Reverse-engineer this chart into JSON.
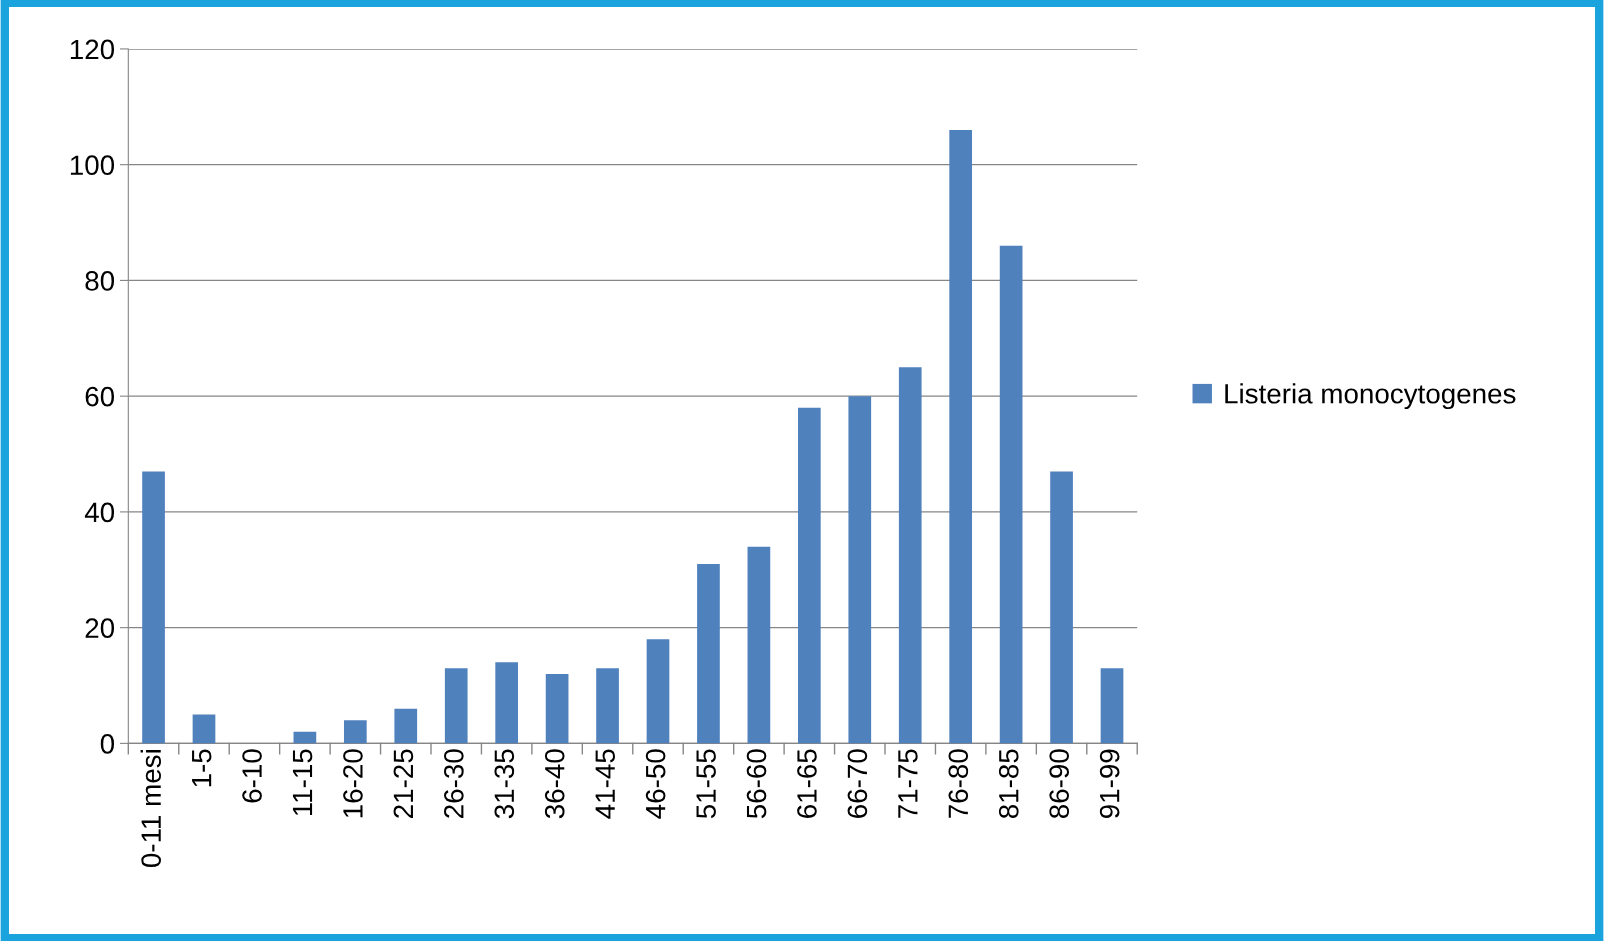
{
  "chart_data": {
    "type": "bar",
    "categories": [
      "0-11 mesi",
      "1-5",
      "6-10",
      "11-15",
      "16-20",
      "21-25",
      "26-30",
      "31-35",
      "36-40",
      "41-45",
      "46-50",
      "51-55",
      "56-60",
      "61-65",
      "66-70",
      "71-75",
      "76-80",
      "81-85",
      "86-90",
      "91-99"
    ],
    "series": [
      {
        "name": "Listeria monocytogenes",
        "color": "#4f81bd",
        "values": [
          47,
          5,
          0,
          2,
          4,
          6,
          13,
          14,
          12,
          13,
          18,
          31,
          34,
          58,
          60,
          65,
          106,
          86,
          47,
          13
        ]
      }
    ],
    "ylim": [
      0,
      120
    ],
    "yticks": [
      0,
      20,
      40,
      60,
      80,
      100,
      120
    ],
    "grid": "y",
    "legend": "right"
  }
}
